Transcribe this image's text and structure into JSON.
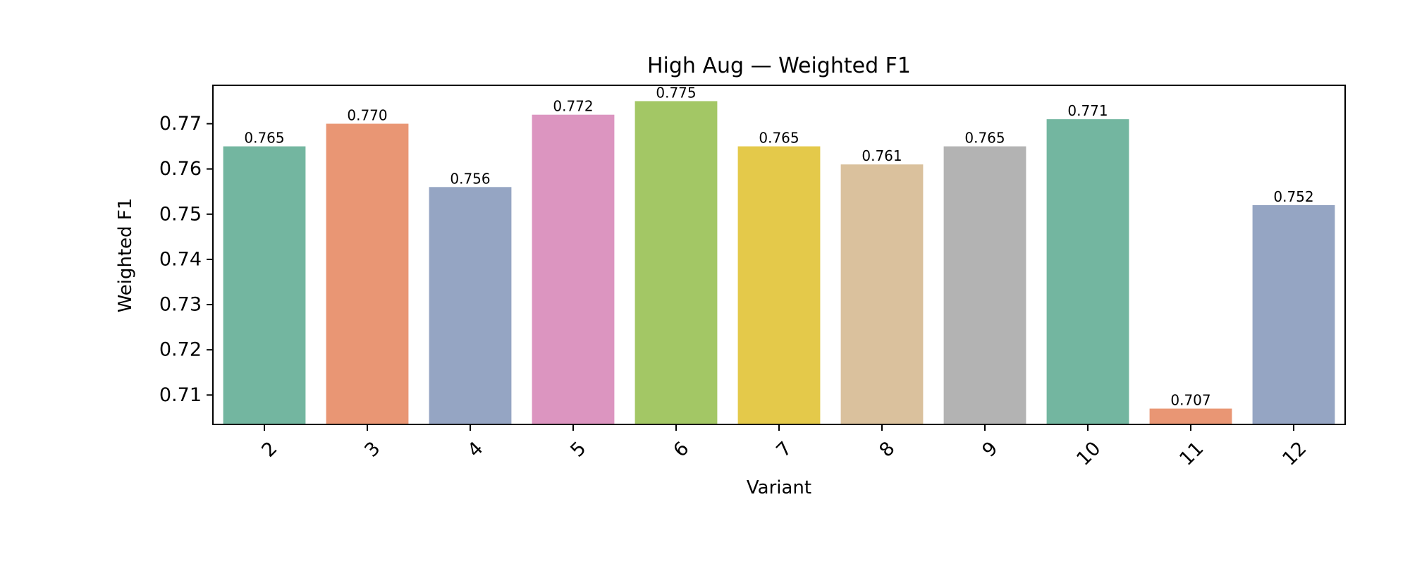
{
  "chart_data": {
    "type": "bar",
    "title": "High Aug — Weighted F1",
    "xlabel": "Variant",
    "ylabel": "Weighted F1",
    "categories": [
      "2",
      "3",
      "4",
      "5",
      "6",
      "7",
      "8",
      "9",
      "10",
      "11",
      "12"
    ],
    "values": [
      0.765,
      0.77,
      0.756,
      0.772,
      0.775,
      0.765,
      0.761,
      0.765,
      0.771,
      0.707,
      0.752
    ],
    "value_labels": [
      "0.765",
      "0.770",
      "0.756",
      "0.772",
      "0.775",
      "0.765",
      "0.761",
      "0.765",
      "0.771",
      "0.707",
      "0.752"
    ],
    "colors": [
      "#73b6a0",
      "#e99674",
      "#95a5c3",
      "#dc95c0",
      "#a3c765",
      "#e4c94a",
      "#dac19d",
      "#b3b3b3",
      "#73b6a0",
      "#e99674",
      "#95a5c3"
    ],
    "ylim": [
      0.7035,
      0.7785
    ],
    "yticks": [
      0.71,
      0.72,
      0.73,
      0.74,
      0.75,
      0.76,
      0.77
    ],
    "ytick_labels": [
      "0.71",
      "0.72",
      "0.73",
      "0.74",
      "0.75",
      "0.76",
      "0.77"
    ],
    "grid": false,
    "legend": "none"
  }
}
